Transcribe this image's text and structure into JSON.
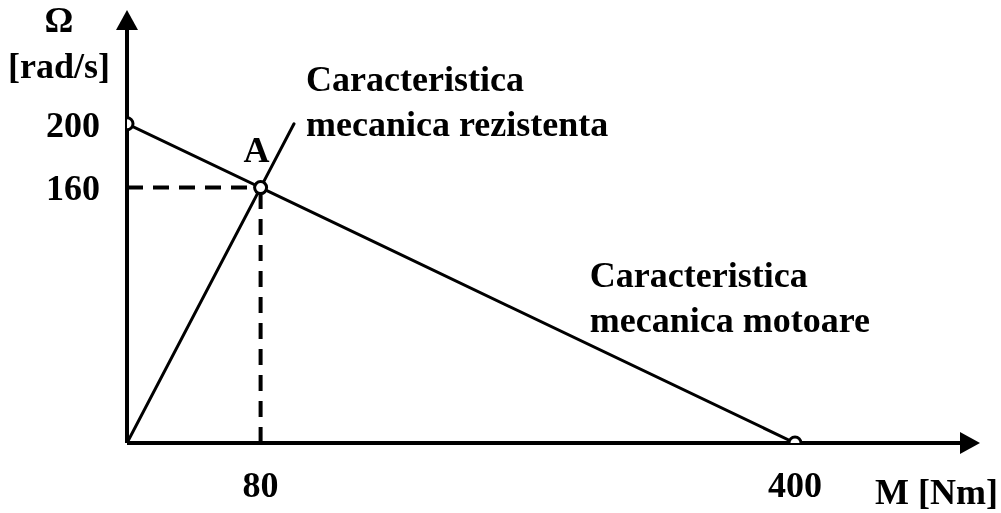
{
  "chart_data": {
    "type": "line",
    "xlabel": "M [Nm]",
    "ylabel": "Ω [rad/s]",
    "xlim": [
      0,
      500
    ],
    "ylim": [
      0,
      260
    ],
    "xticks": [
      80,
      400
    ],
    "yticks": [
      160,
      200
    ],
    "series": [
      {
        "name": "Caracteristica mecanica rezistenta",
        "color": "#000000",
        "x": [
          0,
          80,
          100
        ],
        "values": [
          0,
          160,
          200
        ]
      },
      {
        "name": "Caracteristica mecanica motoare",
        "color": "#000000",
        "x": [
          0,
          80,
          400
        ],
        "values": [
          200,
          160,
          0
        ],
        "marker": "circle"
      }
    ],
    "ref_lines": [
      {
        "axis": "x",
        "value": 80,
        "line_style": "dashed"
      },
      {
        "axis": "y",
        "value": 160,
        "line_style": "dashed"
      }
    ],
    "annotations": [
      {
        "text": "A",
        "x": 80,
        "y": 160
      }
    ]
  }
}
